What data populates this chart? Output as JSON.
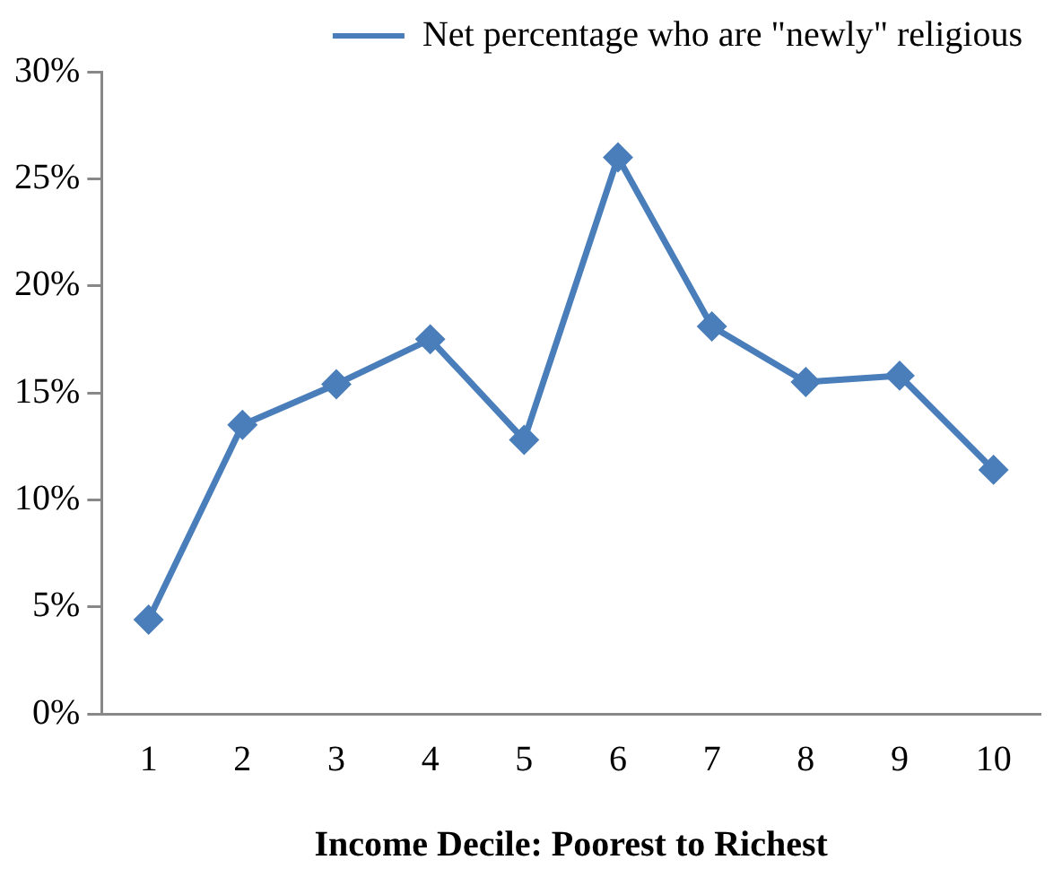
{
  "chart_data": {
    "type": "line",
    "xlabel": "Income Decile: Poorest to Richest",
    "categories": [
      "1",
      "2",
      "3",
      "4",
      "5",
      "6",
      "7",
      "8",
      "9",
      "10"
    ],
    "series": [
      {
        "name": "Net percentage who are \"newly\" religious",
        "color": "#4a7ebb",
        "values": [
          4.4,
          13.5,
          15.4,
          17.5,
          12.8,
          26.0,
          18.1,
          15.5,
          15.8,
          11.4
        ]
      }
    ],
    "ylim": [
      0,
      30
    ],
    "yticks": [
      {
        "value": 0,
        "label": "0%"
      },
      {
        "value": 5,
        "label": "5%"
      },
      {
        "value": 10,
        "label": "10%"
      },
      {
        "value": 15,
        "label": "15%"
      },
      {
        "value": 20,
        "label": "20%"
      },
      {
        "value": 25,
        "label": "25%"
      },
      {
        "value": 30,
        "label": "30%"
      }
    ],
    "grid": false,
    "legend": "top right",
    "marker": "diamond",
    "line_style": "solid"
  }
}
